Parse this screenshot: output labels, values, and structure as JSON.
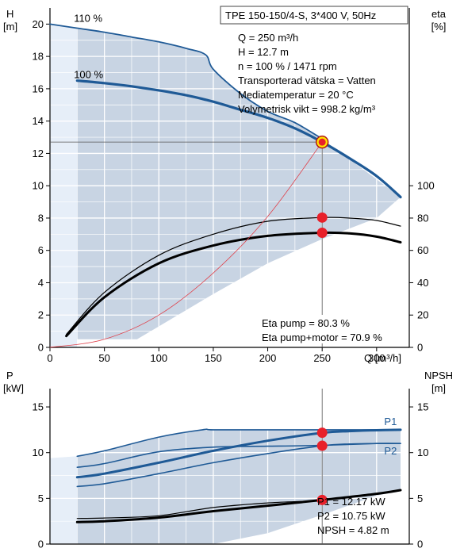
{
  "header": {
    "title": "TPE 150-150/4-S, 3*400 V, 50Hz"
  },
  "info_lines": [
    "Q = 250 m³/h",
    "H = 12.7 m",
    "n = 100 % / 1471 rpm",
    "Transporterad vätska = Vatten",
    "Mediatemperatur = 20 °C",
    "Volymetrisk vikt = 998.2 kg/m³"
  ],
  "eta_notes": [
    "Eta pump = 80.3 %",
    "Eta pump+motor = 70.9 %"
  ],
  "power_notes": [
    "P1 = 12.17 kW",
    "P2 = 10.75 kW",
    "NPSH = 4.82 m"
  ],
  "colors": {
    "curve_blue": "#1f5a96",
    "operating_red": "#e8202a",
    "region_fill": "#c8d4e3",
    "light_region": "#e6eef8",
    "grid": "#ffffff",
    "system_curve": "#e0404a",
    "highlight": "#ffe600"
  },
  "chart_data": [
    {
      "type": "line",
      "title": "",
      "xlabel": "Q [m³/h]",
      "xlim": [
        0,
        330
      ],
      "x_ticks": [
        0,
        50,
        100,
        150,
        200,
        250,
        300
      ],
      "ylabel_left": "H\n[m]",
      "ylim_left": [
        0,
        21
      ],
      "y_ticks_left": [
        0,
        2,
        4,
        6,
        8,
        10,
        12,
        14,
        16,
        18,
        20
      ],
      "ylabel_right": "eta\n[%]",
      "ylim_right": [
        0,
        210
      ],
      "y_ticks_right": [
        0,
        20,
        40,
        60,
        80,
        100
      ],
      "grid": true,
      "series": [
        {
          "name": "110 %",
          "axis": "left",
          "color": "#1f5a96",
          "width": 1.8,
          "x": [
            0,
            25,
            50,
            75,
            100,
            125,
            143,
            150,
            175,
            200,
            225,
            250
          ],
          "y": [
            20.0,
            19.75,
            19.5,
            19.2,
            18.9,
            18.5,
            18.1,
            17.2,
            15.7,
            14.6,
            13.9,
            12.9
          ]
        },
        {
          "name": "100 %",
          "axis": "left",
          "color": "#1f5a96",
          "width": 3.2,
          "x": [
            25,
            50,
            75,
            100,
            125,
            150,
            175,
            200,
            225,
            250,
            275,
            300,
            322
          ],
          "y": [
            16.5,
            16.35,
            16.15,
            15.9,
            15.6,
            15.2,
            14.7,
            14.2,
            13.55,
            12.7,
            11.7,
            10.6,
            9.3
          ]
        },
        {
          "name": "",
          "axis": "right",
          "color": "#000000",
          "width": 1.2,
          "x": [
            15,
            50,
            100,
            150,
            200,
            250,
            275,
            300,
            322
          ],
          "y": [
            8,
            34,
            57,
            70,
            78,
            80.3,
            80,
            78.5,
            75
          ]
        },
        {
          "name": "",
          "axis": "right",
          "color": "#000000",
          "width": 3.0,
          "x": [
            15,
            50,
            100,
            150,
            200,
            250,
            275,
            300,
            322
          ],
          "y": [
            7,
            31,
            52,
            63,
            69,
            70.9,
            70.5,
            68.5,
            65
          ]
        },
        {
          "name": "",
          "axis": "left",
          "color": "#e0404a",
          "width": 0.8,
          "note": "system curve",
          "x": [
            0,
            50,
            100,
            150,
            200,
            250
          ],
          "y": [
            0,
            0.5,
            2.0,
            4.6,
            8.1,
            12.7
          ]
        }
      ],
      "operating_points": [
        {
          "x": 250,
          "y": 12.7,
          "axis": "left",
          "highlight": true
        },
        {
          "x": 250,
          "y": 80.3,
          "axis": "right"
        },
        {
          "x": 250,
          "y": 70.9,
          "axis": "right"
        }
      ],
      "series_labels": [
        "110 %",
        "100 %"
      ]
    },
    {
      "type": "line",
      "title": "",
      "xlim": [
        0,
        330
      ],
      "ylabel_left": "P\n[kW]",
      "ylim_left": [
        0,
        17
      ],
      "y_ticks_left": [
        0,
        5,
        10,
        15
      ],
      "ylabel_right": "NPSH\n[m]",
      "ylim_right": [
        0,
        17
      ],
      "y_ticks_right": [
        0,
        5,
        10,
        15
      ],
      "grid": true,
      "series": [
        {
          "name": "P1",
          "axis": "left",
          "color": "#1f5a96",
          "width": 3.0,
          "x": [
            25,
            50,
            100,
            150,
            200,
            250,
            275,
            300,
            322
          ],
          "y": [
            7.3,
            7.7,
            8.9,
            10.2,
            11.3,
            12.17,
            12.35,
            12.45,
            12.5
          ]
        },
        {
          "name": "P2",
          "axis": "left",
          "color": "#1f5a96",
          "width": 1.6,
          "x": [
            25,
            50,
            100,
            150,
            200,
            250,
            275,
            300,
            322
          ],
          "y": [
            6.3,
            6.6,
            7.7,
            8.9,
            9.9,
            10.75,
            10.95,
            11.0,
            11.0
          ]
        },
        {
          "name": "",
          "axis": "left",
          "color": "#1f5a96",
          "width": 1.6,
          "x": [
            25,
            50,
            100,
            140,
            150,
            200,
            250,
            300,
            322
          ],
          "y": [
            9.6,
            10.2,
            11.7,
            12.5,
            12.5,
            12.5,
            12.5,
            12.5,
            12.5
          ]
        },
        {
          "name": "",
          "axis": "left",
          "color": "#1f5a96",
          "width": 1.6,
          "x": [
            25,
            50,
            100,
            150,
            200,
            250,
            300,
            322
          ],
          "y": [
            8.4,
            8.8,
            10.1,
            10.6,
            10.7,
            10.8,
            11.0,
            11.0
          ]
        },
        {
          "name": "",
          "axis": "right",
          "color": "#000000",
          "width": 1.2,
          "x": [
            25,
            50,
            100,
            150,
            200,
            250,
            300,
            322
          ],
          "y": [
            2.8,
            2.85,
            3.1,
            4.0,
            4.5,
            4.8,
            5.5,
            5.9
          ]
        },
        {
          "name": "",
          "axis": "right",
          "color": "#000000",
          "width": 3.0,
          "x": [
            25,
            50,
            100,
            150,
            200,
            250,
            300,
            322
          ],
          "y": [
            2.4,
            2.5,
            2.9,
            3.6,
            4.2,
            4.82,
            5.5,
            5.9
          ]
        }
      ],
      "operating_points": [
        {
          "x": 250,
          "y": 12.17,
          "axis": "left"
        },
        {
          "x": 250,
          "y": 10.75,
          "axis": "left"
        },
        {
          "x": 250,
          "y": 4.82,
          "axis": "right"
        }
      ],
      "series_labels": [
        "P1",
        "P2"
      ]
    }
  ]
}
